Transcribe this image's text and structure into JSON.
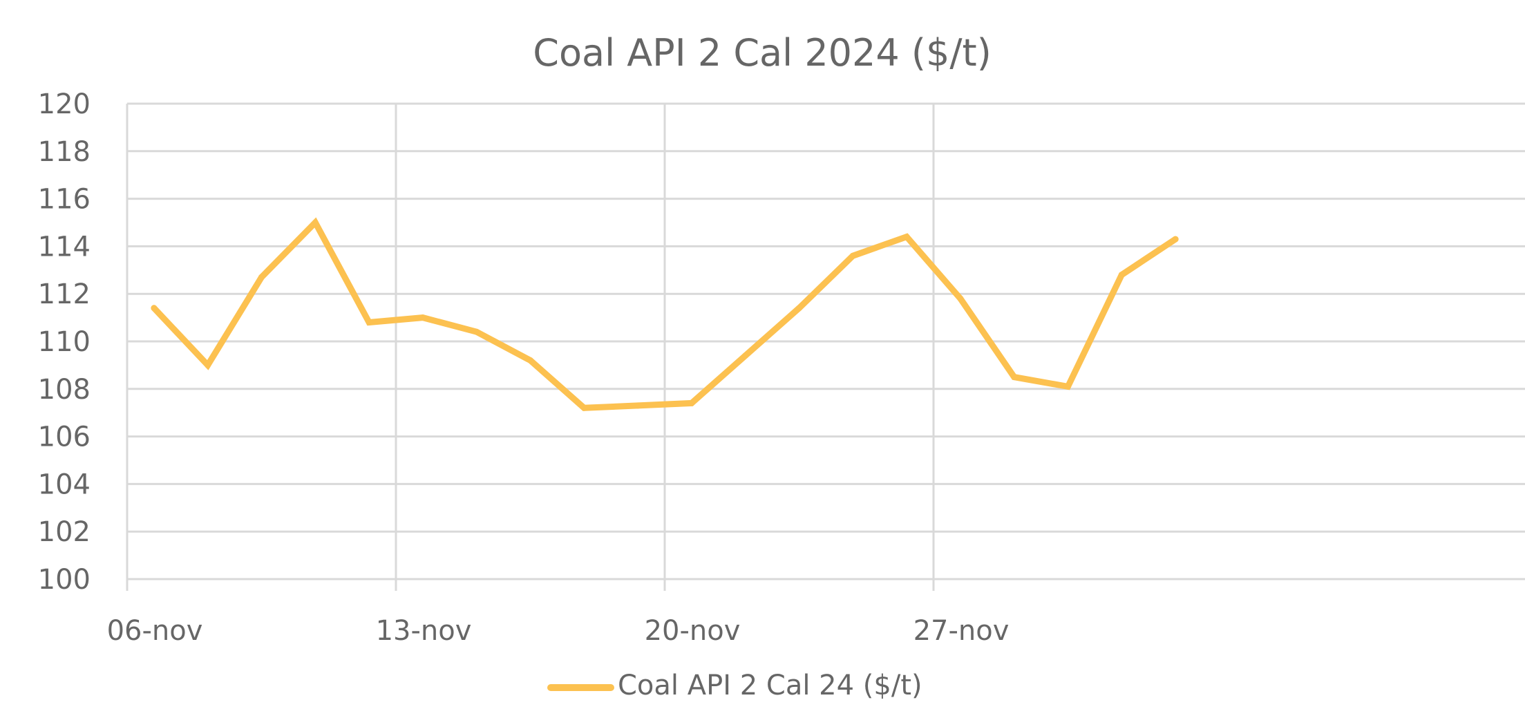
{
  "chart_data": {
    "type": "line",
    "title": "Coal API 2 Cal 2024 ($/t)",
    "xlabel": "",
    "ylabel": "",
    "x_tick_labels": [
      "06-nov",
      "13-nov",
      "20-nov",
      "27-nov"
    ],
    "ylim": [
      100,
      120
    ],
    "y_ticks": [
      100,
      102,
      104,
      106,
      108,
      110,
      112,
      114,
      116,
      118,
      120
    ],
    "grid": true,
    "legend_position": "bottom",
    "series": [
      {
        "name": "Coal API 2 Cal 24 ($/t)",
        "color": "#FCC150",
        "x": [
          "06-nov",
          "07-nov",
          "08-nov",
          "09-nov",
          "10-nov",
          "13-nov",
          "14-nov",
          "15-nov",
          "16-nov",
          "17-nov",
          "20-nov",
          "21-nov",
          "22-nov",
          "23-nov",
          "24-nov",
          "27-nov",
          "28-nov",
          "29-nov",
          "30-nov",
          "01-dic"
        ],
        "values": [
          111.4,
          109.0,
          112.7,
          115.0,
          110.8,
          111.0,
          110.4,
          109.2,
          107.2,
          107.3,
          107.4,
          109.4,
          111.4,
          113.6,
          114.4,
          111.8,
          108.5,
          108.1,
          112.8,
          114.3
        ]
      }
    ]
  }
}
